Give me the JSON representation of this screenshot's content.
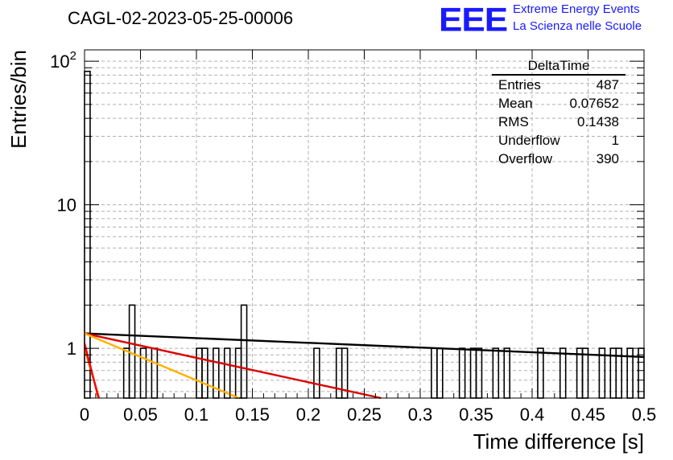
{
  "header": {
    "run_title": "CAGL-02-2023-05-25-00006",
    "logo_mark": "EEE",
    "logo_line1": "Extreme Energy Events",
    "logo_line2": "La Scienza nelle Scuole"
  },
  "stats_box": {
    "title": "DeltaTime",
    "rows": [
      {
        "label": "Entries",
        "value": "487"
      },
      {
        "label": "Mean",
        "value": "0.07652"
      },
      {
        "label": "RMS",
        "value": "0.1438"
      },
      {
        "label": "Underflow",
        "value": "1"
      },
      {
        "label": "Overflow",
        "value": "390"
      }
    ]
  },
  "chart_data": {
    "type": "bar",
    "xlabel": "Time difference [s]",
    "ylabel": "Entries/bin",
    "xlim": [
      0,
      0.5
    ],
    "ylim": [
      0.45,
      120
    ],
    "yscale": "log",
    "grid": true,
    "x_ticks": [
      0,
      0.05,
      0.1,
      0.15,
      0.2,
      0.25,
      0.3,
      0.35,
      0.4,
      0.45,
      0.5
    ],
    "x_tick_labels": [
      "0",
      "0.05",
      "0.1",
      "0.15",
      "0.2",
      "0.25",
      "0.3",
      "0.35",
      "0.4",
      "0.45",
      "0.5"
    ],
    "y_ticks": [
      1,
      10,
      100
    ],
    "y_tick_labels": [
      "1",
      "10",
      "10^2"
    ],
    "bin_width": 0.005,
    "bins": [
      {
        "x": 0.0,
        "y": 85
      },
      {
        "x": 0.035,
        "y": 1
      },
      {
        "x": 0.04,
        "y": 2
      },
      {
        "x": 0.05,
        "y": 1
      },
      {
        "x": 0.06,
        "y": 1
      },
      {
        "x": 0.1,
        "y": 1
      },
      {
        "x": 0.105,
        "y": 1
      },
      {
        "x": 0.115,
        "y": 1
      },
      {
        "x": 0.125,
        "y": 1
      },
      {
        "x": 0.135,
        "y": 1
      },
      {
        "x": 0.14,
        "y": 2
      },
      {
        "x": 0.205,
        "y": 1
      },
      {
        "x": 0.225,
        "y": 1
      },
      {
        "x": 0.23,
        "y": 1
      },
      {
        "x": 0.31,
        "y": 1
      },
      {
        "x": 0.315,
        "y": 1
      },
      {
        "x": 0.335,
        "y": 1
      },
      {
        "x": 0.345,
        "y": 1
      },
      {
        "x": 0.35,
        "y": 1
      },
      {
        "x": 0.365,
        "y": 1
      },
      {
        "x": 0.375,
        "y": 1
      },
      {
        "x": 0.405,
        "y": 1
      },
      {
        "x": 0.425,
        "y": 1
      },
      {
        "x": 0.44,
        "y": 1
      },
      {
        "x": 0.445,
        "y": 1
      },
      {
        "x": 0.46,
        "y": 1
      },
      {
        "x": 0.47,
        "y": 1
      },
      {
        "x": 0.475,
        "y": 1
      },
      {
        "x": 0.485,
        "y": 1
      },
      {
        "x": 0.495,
        "y": 1
      }
    ],
    "series": [
      {
        "color": "#000000",
        "x": [
          0,
          0.5
        ],
        "y": [
          1.27,
          0.87
        ]
      },
      {
        "color": "#dd0000",
        "x": [
          0,
          0.265
        ],
        "y": [
          1.27,
          0.45
        ]
      },
      {
        "color": "#ffb000",
        "x": [
          0,
          0.138
        ],
        "y": [
          1.27,
          0.45
        ]
      },
      {
        "color": "#ff6600",
        "x": [
          0,
          0.013
        ],
        "y": [
          1.0,
          0.45
        ]
      },
      {
        "color": "#ff0000",
        "x": [
          0,
          0.0125
        ],
        "y": [
          1.08,
          0.45
        ]
      }
    ]
  }
}
